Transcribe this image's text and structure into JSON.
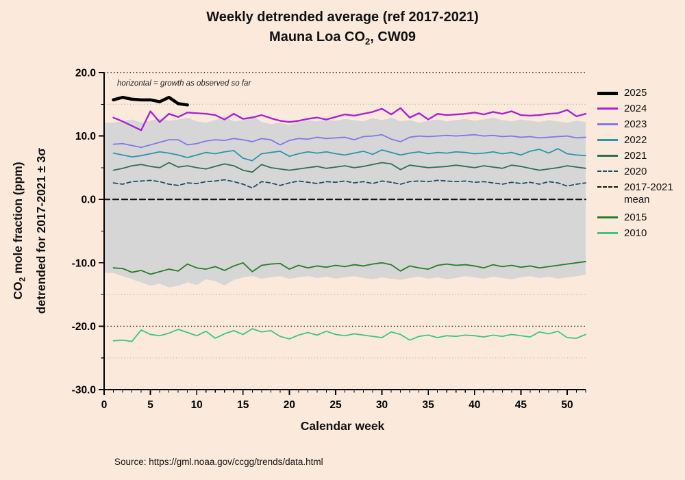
{
  "title": {
    "line1": "Weekly detrended average (ref 2017-2021)",
    "line2_pre": "Mauna Loa CO",
    "line2_sub": "2",
    "line2_post": ", CW09"
  },
  "y_axis": {
    "label_line1_pre": "CO",
    "label_line1_sub": "2",
    "label_line1_post": " mole fraction (ppm)",
    "label_line2": "detrended for 2017-2021 ± 3σ"
  },
  "x_axis": {
    "label": "Calendar week"
  },
  "annotation": {
    "text": "horizontal  = growth as observed so far"
  },
  "source": {
    "text": "Source: https://gml.noaa.gov/ccgg/trends/data.html"
  },
  "colors": {
    "background": "#fbe9dc",
    "band": "#d6d6d6",
    "grid_dark": "#1a1a1a",
    "grid_light": "#9e9e9e",
    "axis": "#000000"
  },
  "legend": {
    "items": [
      {
        "label": "2025",
        "color": "#000000",
        "width": 5,
        "dash": false
      },
      {
        "label": "2024",
        "color": "#ab22cf",
        "width": 3,
        "dash": false
      },
      {
        "label": "2023",
        "color": "#7e78e8",
        "width": 3,
        "dash": false
      },
      {
        "label": "2022",
        "color": "#2a95ad",
        "width": 3,
        "dash": false
      },
      {
        "label": "2021",
        "color": "#2e6f52",
        "width": 3,
        "dash": false
      },
      {
        "label": "2020",
        "color": "#1f5062",
        "width": 2,
        "dash": true
      },
      {
        "label": "2017-2021",
        "label2": "mean",
        "color": "#111111",
        "width": 2,
        "dash": true
      },
      {
        "label": "2015",
        "color": "#267d23",
        "width": 3,
        "dash": false,
        "gap": true
      },
      {
        "label": "2010",
        "color": "#3fc383",
        "width": 3,
        "dash": false
      }
    ]
  },
  "chart_data": {
    "type": "line",
    "title": "Weekly detrended average (ref 2017-2021) — Mauna Loa CO2, CW09",
    "xlabel": "Calendar week",
    "ylabel": "CO2 mole fraction (ppm) detrended for 2017-2021 ± 3σ",
    "xlim": [
      0,
      52
    ],
    "ylim": [
      -30,
      20
    ],
    "x_ticks": [
      0,
      5,
      10,
      15,
      20,
      25,
      30,
      35,
      40,
      45,
      50
    ],
    "y_ticks": [
      -30,
      -20,
      -10,
      0,
      10,
      20
    ],
    "gridlines": {
      "major_dotted": [
        20,
        10,
        0,
        -10,
        -20
      ],
      "minor_dotted": [
        15,
        5,
        -5,
        -15,
        -25
      ]
    },
    "legend_position": "right",
    "band": {
      "name": "2017-2021 ±3σ envelope",
      "color": "#d6d6d6",
      "upper": [
        12.1,
        12.3,
        12.6,
        12.1,
        12.4,
        12.8,
        12.4,
        12.6,
        12.9,
        12.3,
        12.1,
        12.5,
        13.1,
        12.3,
        12.5,
        13.3,
        12.2,
        11.9,
        12.1,
        11.7,
        12.3,
        12.5,
        12.3,
        12.6,
        12.4,
        12.7,
        12.5,
        12.3,
        12.8,
        12.5,
        12.9,
        12.3,
        12.5,
        12.1,
        12.4,
        12.6,
        12.3,
        12.5,
        12.7,
        12.4,
        12.6,
        12.9,
        12.5,
        12.3,
        12.6,
        12.4,
        12.2,
        12.5,
        12.3,
        12.1,
        12.4,
        12.2
      ],
      "lower": [
        -11.6,
        -12.1,
        -12.6,
        -13.1,
        -13.6,
        -13.3,
        -13.9,
        -13.6,
        -13.1,
        -13.5,
        -12.6,
        -12.9,
        -13.6,
        -12.7,
        -12.3,
        -12.1,
        -12.5,
        -12.3,
        -12.1,
        -12.5,
        -12.3,
        -12.1,
        -12.4,
        -12.2,
        -12.5,
        -12.3,
        -12.1,
        -12.4,
        -12.6,
        -12.3,
        -12.5,
        -12.7,
        -12.4,
        -12.2,
        -12.5,
        -12.3,
        -12.6,
        -12.4,
        -12.1,
        -12.3,
        -12.5,
        -12.2,
        -12.4,
        -12.6,
        -12.3,
        -12.1,
        -12.4,
        -12.2,
        -12.5,
        -12.3,
        -12.1,
        -11.9
      ]
    },
    "series": [
      {
        "name": "2010",
        "color": "#3fc383",
        "width": 1.8,
        "dash": null,
        "values": [
          -22.3,
          -22.2,
          -22.4,
          -20.6,
          -21.3,
          -21.5,
          -21.1,
          -20.5,
          -21.0,
          -21.5,
          -20.8,
          -21.9,
          -21.2,
          -20.7,
          -21.3,
          -20.4,
          -20.9,
          -20.7,
          -21.6,
          -22.0,
          -21.4,
          -21.0,
          -21.4,
          -20.8,
          -21.3,
          -21.5,
          -21.2,
          -21.4,
          -21.6,
          -21.8,
          -20.9,
          -21.3,
          -22.2,
          -21.6,
          -21.4,
          -21.8,
          -21.5,
          -21.6,
          -21.4,
          -21.5,
          -21.7,
          -21.4,
          -21.6,
          -21.3,
          -21.5,
          -21.7,
          -20.9,
          -21.2,
          -20.8,
          -21.8,
          -21.9,
          -21.3
        ]
      },
      {
        "name": "2015",
        "color": "#267d23",
        "width": 1.8,
        "dash": null,
        "values": [
          -10.8,
          -10.9,
          -11.5,
          -11.2,
          -11.8,
          -11.4,
          -11.0,
          -11.3,
          -10.2,
          -10.8,
          -11.0,
          -10.6,
          -11.2,
          -10.5,
          -10.0,
          -11.4,
          -10.4,
          -10.2,
          -10.1,
          -11.0,
          -10.4,
          -10.8,
          -10.5,
          -10.7,
          -10.4,
          -10.6,
          -10.3,
          -10.5,
          -10.2,
          -10.0,
          -10.3,
          -11.3,
          -10.5,
          -10.8,
          -11.0,
          -10.4,
          -10.2,
          -10.4,
          -10.3,
          -10.5,
          -10.8,
          -10.3,
          -10.6,
          -10.4,
          -10.7,
          -10.5,
          -10.8,
          -10.6,
          -10.4,
          -10.2,
          -10.0,
          -9.8
        ]
      },
      {
        "name": "2017-2021 mean",
        "color": "#111111",
        "width": 2.2,
        "dash": "8 5",
        "constant": 0
      },
      {
        "name": "2020",
        "color": "#1f5062",
        "width": 1.8,
        "dash": "6 4",
        "values": [
          2.6,
          2.4,
          2.8,
          2.9,
          3.0,
          2.8,
          2.4,
          2.2,
          2.6,
          2.5,
          2.8,
          2.9,
          3.1,
          2.8,
          2.4,
          1.8,
          2.8,
          2.6,
          2.2,
          2.6,
          2.9,
          2.7,
          2.5,
          2.8,
          2.7,
          2.9,
          2.6,
          2.8,
          2.5,
          2.9,
          2.7,
          2.4,
          2.8,
          2.9,
          2.8,
          3.0,
          2.9,
          2.8,
          2.9,
          2.7,
          2.8,
          2.6,
          2.4,
          2.7,
          2.5,
          2.7,
          2.4,
          2.8,
          2.6,
          2.1,
          2.4,
          2.6
        ]
      },
      {
        "name": "2021",
        "color": "#2e6f52",
        "width": 1.8,
        "dash": null,
        "values": [
          4.6,
          4.9,
          5.3,
          5.5,
          5.2,
          5.0,
          5.8,
          5.1,
          5.3,
          5.0,
          4.8,
          5.2,
          5.6,
          5.3,
          4.6,
          4.3,
          5.5,
          5.0,
          4.8,
          4.6,
          4.8,
          5.0,
          5.2,
          4.9,
          5.1,
          5.3,
          5.0,
          5.2,
          5.5,
          5.8,
          5.6,
          4.7,
          5.4,
          5.2,
          5.0,
          5.1,
          5.2,
          5.4,
          5.2,
          5.0,
          5.3,
          5.1,
          4.9,
          5.4,
          5.2,
          4.9,
          4.6,
          4.8,
          5.0,
          5.3,
          5.1,
          4.9
        ]
      },
      {
        "name": "2022",
        "color": "#2a95ad",
        "width": 1.8,
        "dash": null,
        "values": [
          7.3,
          7.0,
          6.7,
          6.9,
          7.2,
          7.5,
          7.3,
          7.0,
          6.6,
          7.0,
          7.4,
          7.2,
          7.5,
          7.7,
          6.5,
          6.1,
          7.2,
          7.4,
          7.6,
          6.8,
          7.2,
          7.5,
          7.3,
          7.5,
          7.2,
          7.0,
          7.3,
          7.6,
          7.1,
          7.8,
          7.4,
          7.0,
          7.3,
          7.5,
          7.2,
          7.4,
          7.3,
          7.5,
          7.4,
          7.2,
          7.3,
          7.5,
          7.2,
          7.4,
          7.0,
          7.6,
          7.9,
          7.3,
          8.0,
          7.2,
          7.0,
          6.9
        ]
      },
      {
        "name": "2023",
        "color": "#7e78e8",
        "width": 1.8,
        "dash": null,
        "values": [
          8.7,
          8.8,
          8.5,
          8.2,
          8.6,
          9.0,
          9.4,
          9.4,
          8.6,
          8.8,
          9.2,
          9.4,
          9.3,
          9.6,
          9.4,
          9.1,
          9.6,
          9.4,
          8.6,
          9.3,
          9.6,
          9.5,
          9.8,
          9.6,
          9.7,
          9.8,
          9.4,
          9.9,
          10.0,
          10.2,
          9.5,
          9.1,
          9.8,
          10.0,
          9.9,
          10.0,
          10.1,
          10.0,
          10.1,
          10.2,
          10.0,
          10.1,
          9.9,
          10.0,
          9.8,
          9.9,
          9.7,
          9.8,
          9.9,
          10.0,
          9.7,
          9.8
        ]
      },
      {
        "name": "2024",
        "color": "#ab22cf",
        "width": 2.4,
        "dash": null,
        "values": [
          12.9,
          12.3,
          11.6,
          10.9,
          13.9,
          12.2,
          13.5,
          13.0,
          13.7,
          13.6,
          13.5,
          13.3,
          12.6,
          13.5,
          12.7,
          12.9,
          13.3,
          12.8,
          12.4,
          12.2,
          12.4,
          12.7,
          12.9,
          12.6,
          13.0,
          13.4,
          13.2,
          13.5,
          13.8,
          14.3,
          13.4,
          14.4,
          12.9,
          13.6,
          12.6,
          13.5,
          13.3,
          13.4,
          13.5,
          13.7,
          13.4,
          13.8,
          13.5,
          13.9,
          13.3,
          13.2,
          13.3,
          13.5,
          13.6,
          14.1,
          13.1,
          13.5
        ]
      },
      {
        "name": "2025",
        "color": "#000000",
        "width": 4.5,
        "dash": null,
        "values": [
          15.7,
          16.1,
          15.8,
          15.7,
          15.7,
          15.4,
          16.1,
          15.1,
          14.9
        ]
      }
    ]
  }
}
